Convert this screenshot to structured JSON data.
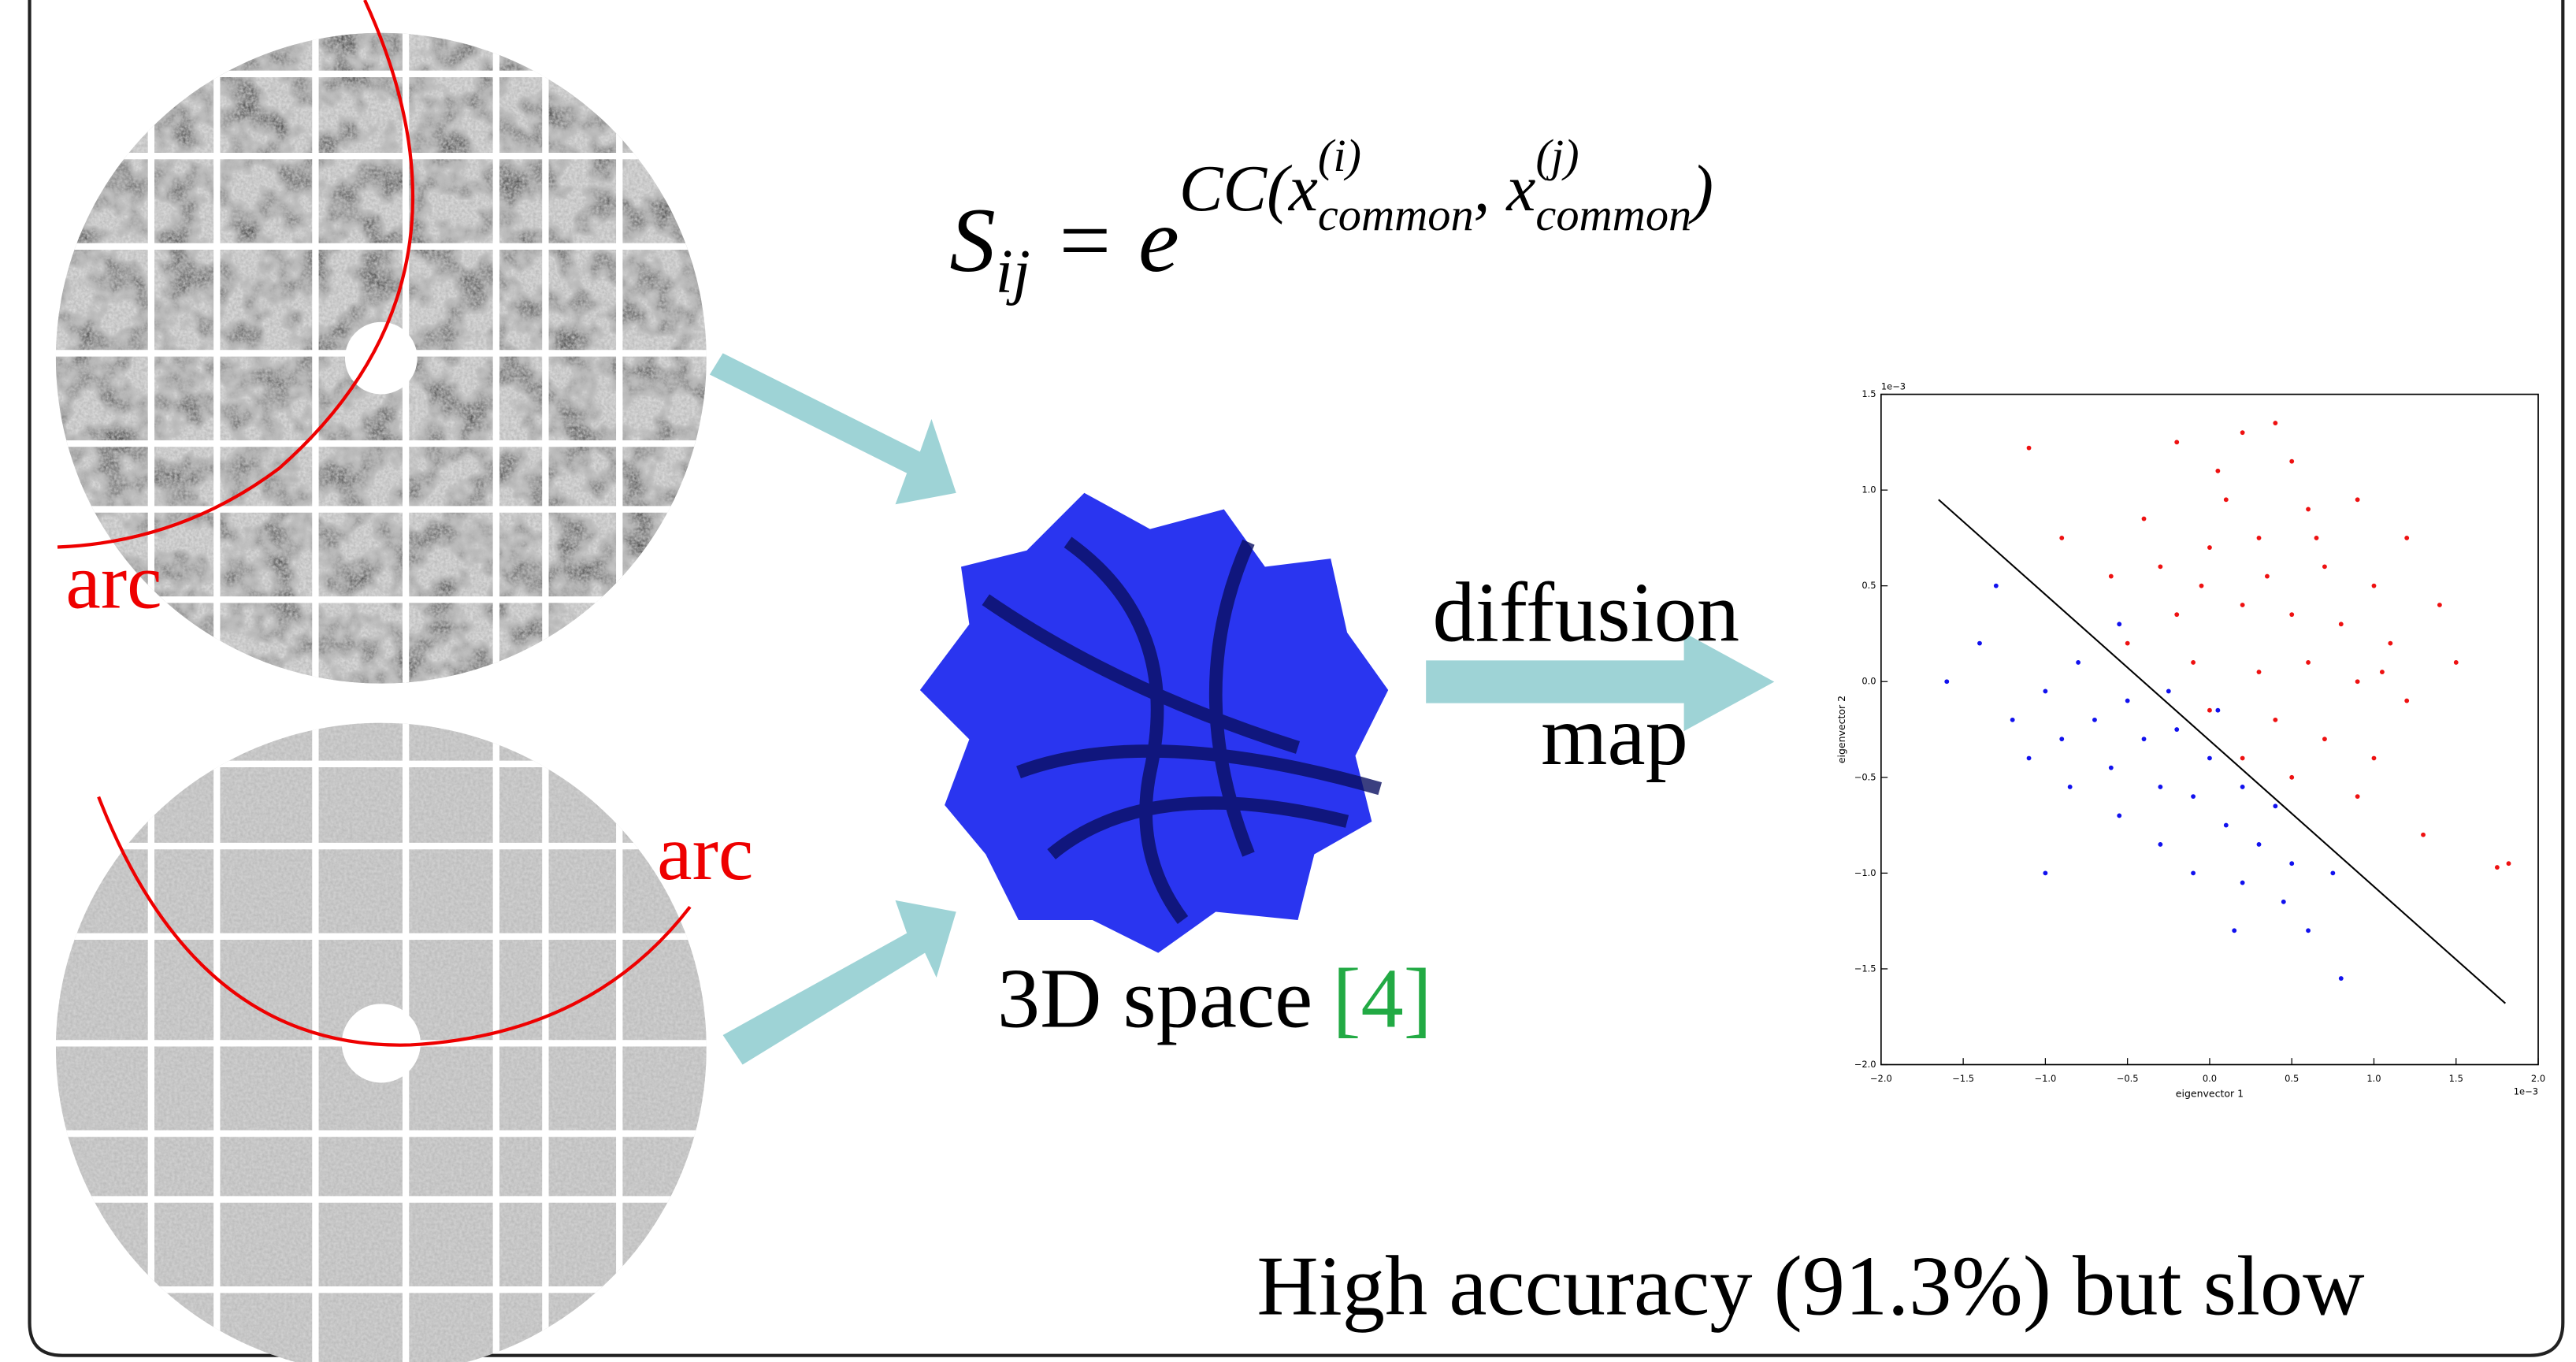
{
  "slide": {
    "formula": [
      {
        "text": "S",
        "pos": "base"
      },
      {
        "text": "ij",
        "pos": "sub"
      },
      {
        "text": " = e",
        "pos": "base"
      },
      {
        "text": "CC(x",
        "pos": "sup"
      },
      {
        "text": "common",
        "pos": "sup-sub"
      },
      {
        "text": "(i)",
        "pos": "sup-sup"
      },
      {
        "text": ", x",
        "pos": "sup"
      },
      {
        "text": "common",
        "pos": "sup-sub"
      },
      {
        "text": "(j)",
        "pos": "sup-sup"
      },
      {
        "text": ")",
        "pos": "sup"
      }
    ],
    "arc_label_top": "arc",
    "arc_label_bottom": "arc",
    "method_line1": "diffusion",
    "method_line2": "map",
    "space_label": "3D space",
    "space_citation": "[4]",
    "conclusion": "High accuracy (91.3%)  but slow"
  },
  "chart_data": {
    "type": "scatter",
    "xlabel": "eigenvector 1",
    "ylabel": "eigenvector 2",
    "x_offset_label": "1e−3",
    "y_offset_label": "1e−3",
    "xlim": [
      -2.0,
      2.0
    ],
    "ylim": [
      -2.0,
      1.5
    ],
    "xticks": [
      {
        "value": -2.0,
        "label": "−2.0"
      },
      {
        "value": -1.5,
        "label": "−1.5"
      },
      {
        "value": -1.0,
        "label": "−1.0"
      },
      {
        "value": -0.5,
        "label": "−0.5"
      },
      {
        "value": 0.0,
        "label": "0.0"
      },
      {
        "value": 0.5,
        "label": "0.5"
      },
      {
        "value": 1.0,
        "label": "1.0"
      },
      {
        "value": 1.5,
        "label": "1.5"
      },
      {
        "value": 2.0,
        "label": "2.0"
      }
    ],
    "yticks": [
      {
        "value": -2.0,
        "label": "−2.0"
      },
      {
        "value": -1.5,
        "label": "−1.5"
      },
      {
        "value": -1.0,
        "label": "−1.0"
      },
      {
        "value": -0.5,
        "label": "−0.5"
      },
      {
        "value": 0.0,
        "label": "0.0"
      },
      {
        "value": 0.5,
        "label": "0.5"
      },
      {
        "value": 1.0,
        "label": "1.0"
      },
      {
        "value": 1.5,
        "label": "1.5"
      }
    ],
    "series": [
      {
        "color": "#ee1111",
        "x": [
          -1.1,
          -0.2,
          0.05,
          0.2,
          0.4,
          0.5,
          0.1,
          -0.4,
          0.6,
          0.9,
          1.2,
          -0.9,
          -0.6,
          -0.3,
          0.0,
          0.3,
          0.7,
          1.0,
          1.4,
          -0.2,
          0.2,
          0.5,
          0.8,
          1.1,
          1.5,
          -0.5,
          -0.1,
          0.3,
          0.6,
          0.9,
          1.2,
          0.0,
          0.4,
          0.7,
          1.0,
          0.2,
          0.5,
          0.9,
          1.3,
          1.75,
          1.82,
          0.35,
          -0.05,
          0.65,
          1.05
        ],
        "values": [
          1.22,
          1.25,
          1.1,
          1.3,
          1.35,
          1.15,
          0.95,
          0.85,
          0.9,
          0.95,
          0.75,
          0.75,
          0.55,
          0.6,
          0.7,
          0.75,
          0.6,
          0.5,
          0.4,
          0.35,
          0.4,
          0.35,
          0.3,
          0.2,
          0.1,
          0.2,
          0.1,
          0.05,
          0.1,
          0.0,
          -0.1,
          -0.15,
          -0.2,
          -0.3,
          -0.4,
          -0.4,
          -0.5,
          -0.6,
          -0.8,
          -0.97,
          -0.95,
          0.55,
          0.5,
          0.75,
          0.05
        ]
      },
      {
        "color": "#1111ee",
        "x": [
          -1.6,
          -1.4,
          -1.3,
          -1.2,
          -1.0,
          -0.9,
          -0.8,
          -0.7,
          -0.6,
          -0.5,
          -0.4,
          -0.3,
          -0.2,
          -0.1,
          0.0,
          0.1,
          0.2,
          0.3,
          0.4,
          0.5,
          -1.1,
          -0.85,
          -0.55,
          -0.3,
          -0.1,
          0.2,
          0.45,
          -1.0,
          -0.55,
          0.8,
          0.6,
          0.15,
          -0.25,
          0.05,
          0.75
        ],
        "values": [
          0.0,
          0.2,
          0.5,
          -0.2,
          -0.05,
          -0.3,
          0.1,
          -0.2,
          -0.45,
          -0.1,
          -0.3,
          -0.55,
          -0.25,
          -0.6,
          -0.4,
          -0.75,
          -0.55,
          -0.85,
          -0.65,
          -0.95,
          -0.4,
          -0.55,
          -0.7,
          -0.85,
          -1.0,
          -1.05,
          -1.15,
          -1.0,
          0.3,
          -1.55,
          -1.3,
          -1.3,
          -0.05,
          -0.15,
          -1.0
        ]
      }
    ],
    "boundary": {
      "color": "#000000",
      "x": [
        -1.65,
        1.8
      ],
      "values": [
        0.95,
        -1.68
      ]
    }
  }
}
